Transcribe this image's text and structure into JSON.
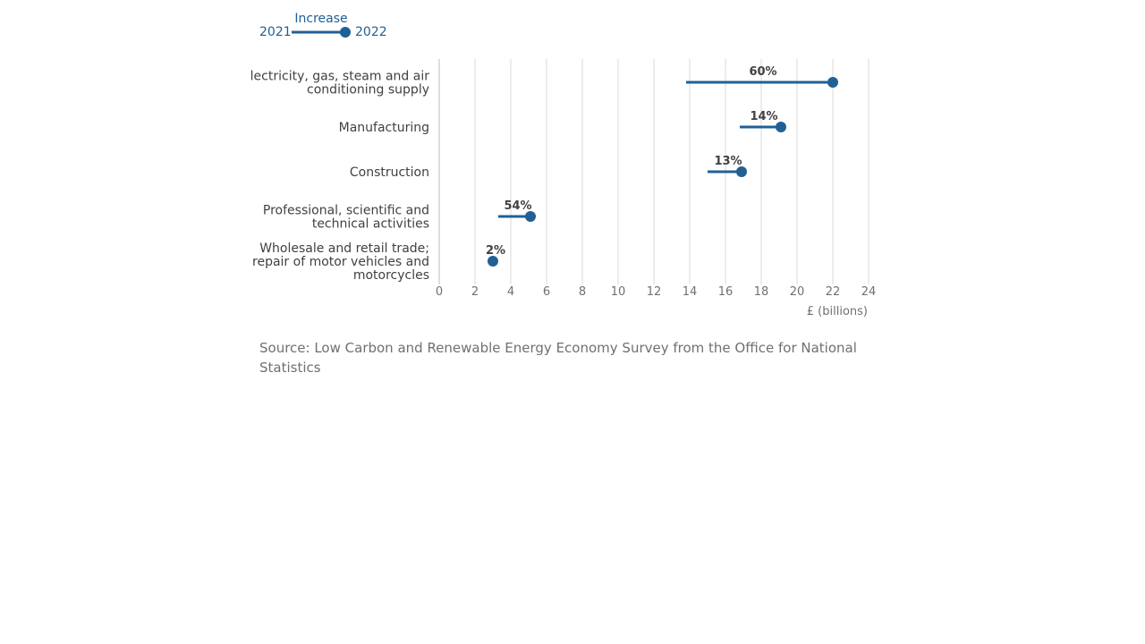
{
  "legend": {
    "start_label": "2021",
    "end_label": "2022",
    "title": "Increase"
  },
  "chart_data": {
    "type": "dumbbell",
    "xlabel": "£ (billions)",
    "xlim": [
      0,
      24
    ],
    "x_ticks": [
      0,
      2,
      4,
      6,
      8,
      10,
      12,
      14,
      16,
      18,
      20,
      22,
      24
    ],
    "grid": true,
    "legend_placement": "top-left",
    "series": [
      {
        "name": "2021"
      },
      {
        "name": "2022"
      }
    ],
    "categories": [
      {
        "label_lines": [
          "lectricity, gas, steam and air",
          "conditioning supply"
        ],
        "start": 13.8,
        "end": 22.0,
        "change_label": "60%"
      },
      {
        "label_lines": [
          "Manufacturing"
        ],
        "start": 16.8,
        "end": 19.1,
        "change_label": "14%"
      },
      {
        "label_lines": [
          "Construction"
        ],
        "start": 15.0,
        "end": 16.9,
        "change_label": "13%"
      },
      {
        "label_lines": [
          "Professional, scientific and",
          "technical activities"
        ],
        "start": 3.3,
        "end": 5.1,
        "change_label": "54%"
      },
      {
        "label_lines": [
          "Wholesale and retail trade;",
          "repair of motor vehicles and",
          "motorcycles"
        ],
        "start": 2.9,
        "end": 3.0,
        "change_label": "2%"
      }
    ]
  },
  "source": "Source: Low Carbon and Renewable Energy Economy Survey from the Office for National Statistics",
  "colors": {
    "series": "#206095",
    "grid": "#d9d9d9",
    "axis_text": "#707070",
    "label_text": "#414042"
  }
}
